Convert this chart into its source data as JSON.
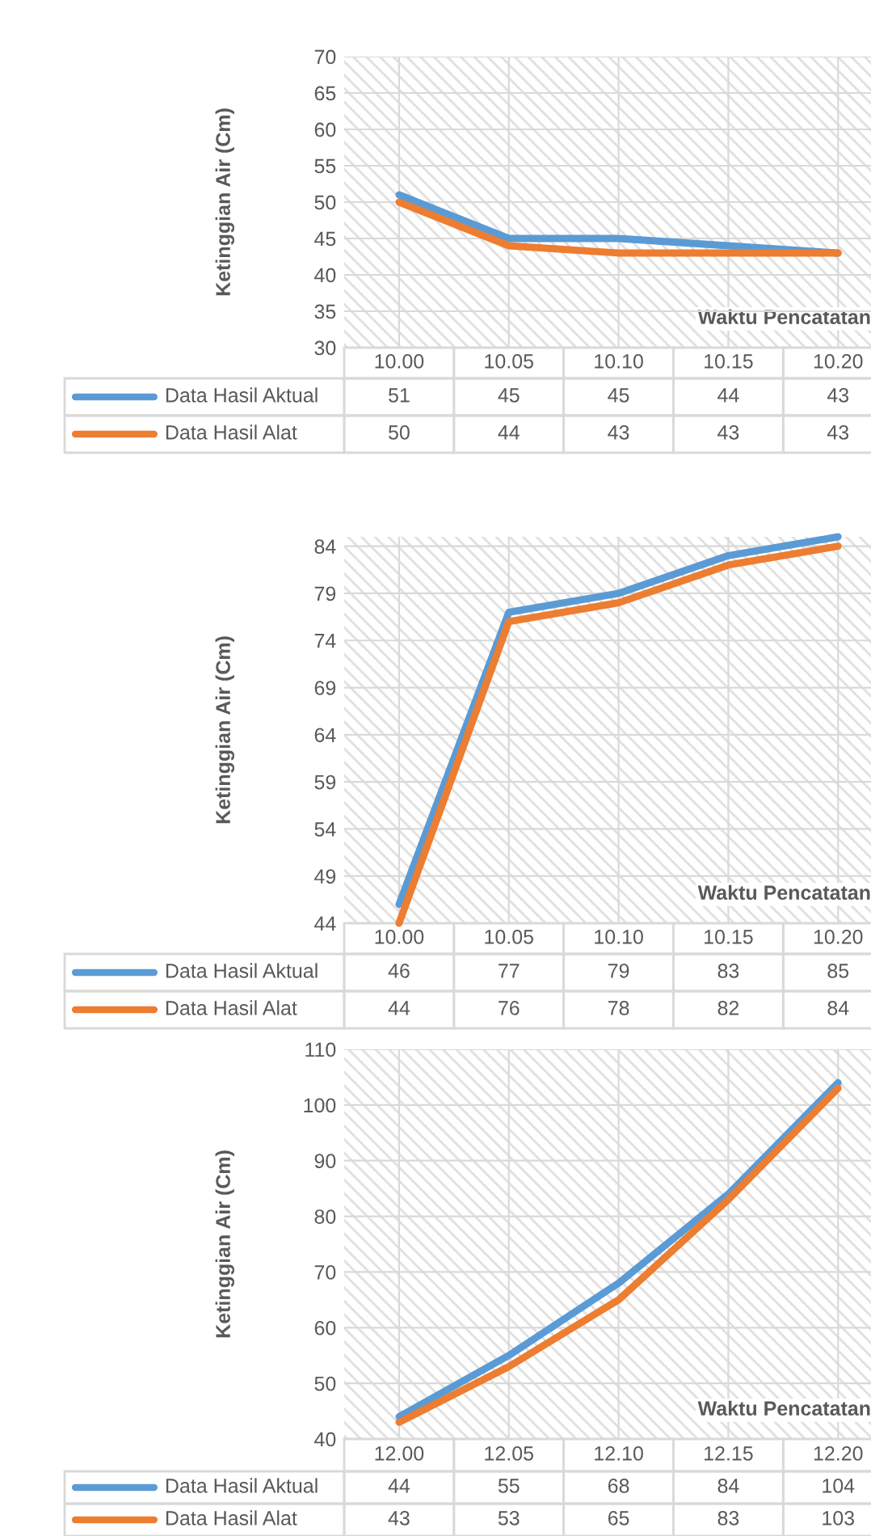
{
  "chart_data": [
    {
      "type": "line",
      "xlabel": "Waktu Pencatatan",
      "ylabel": "Ketinggian Air (Cm)",
      "categories": [
        "10.00",
        "10.05",
        "10.10",
        "10.15",
        "10.20"
      ],
      "ylim": [
        30,
        70
      ],
      "yticks": [
        30,
        35,
        40,
        45,
        50,
        55,
        60,
        65,
        70
      ],
      "grid": true,
      "legend": "bottom",
      "data_labels": true,
      "series": [
        {
          "name": "Data Hasil Aktual",
          "color": "#5b9bd5",
          "values": [
            51,
            45,
            45,
            44,
            43
          ]
        },
        {
          "name": "Data Hasil Alat",
          "color": "#ed7d31",
          "values": [
            50,
            44,
            43,
            43,
            43
          ]
        }
      ]
    },
    {
      "type": "line",
      "xlabel": "Waktu Pencatatan",
      "ylabel": "Ketinggian Air (Cm)",
      "categories": [
        "10.00",
        "10.05",
        "10.10",
        "10.15",
        "10.20"
      ],
      "ylim": [
        44,
        85
      ],
      "yticks": [
        44,
        49,
        54,
        59,
        64,
        69,
        74,
        79,
        84
      ],
      "grid": true,
      "legend": "bottom",
      "data_labels": true,
      "series": [
        {
          "name": "Data Hasil Aktual",
          "color": "#5b9bd5",
          "values": [
            46,
            77,
            79,
            83,
            85
          ]
        },
        {
          "name": "Data Hasil Alat",
          "color": "#ed7d31",
          "values": [
            44,
            76,
            78,
            82,
            84
          ]
        }
      ]
    },
    {
      "type": "line",
      "xlabel": "Waktu Pencatatan",
      "ylabel": "Ketinggian Air (Cm)",
      "categories": [
        "12.00",
        "12.05",
        "12.10",
        "12.15",
        "12.20"
      ],
      "ylim": [
        40,
        110
      ],
      "yticks": [
        40,
        50,
        60,
        70,
        80,
        90,
        100,
        110
      ],
      "grid": true,
      "legend": "bottom",
      "data_labels": true,
      "series": [
        {
          "name": "Data Hasil Aktual",
          "color": "#5b9bd5",
          "values": [
            44,
            55,
            68,
            84,
            104
          ]
        },
        {
          "name": "Data Hasil Alat",
          "color": "#ed7d31",
          "values": [
            43,
            53,
            65,
            83,
            103
          ]
        }
      ]
    }
  ]
}
